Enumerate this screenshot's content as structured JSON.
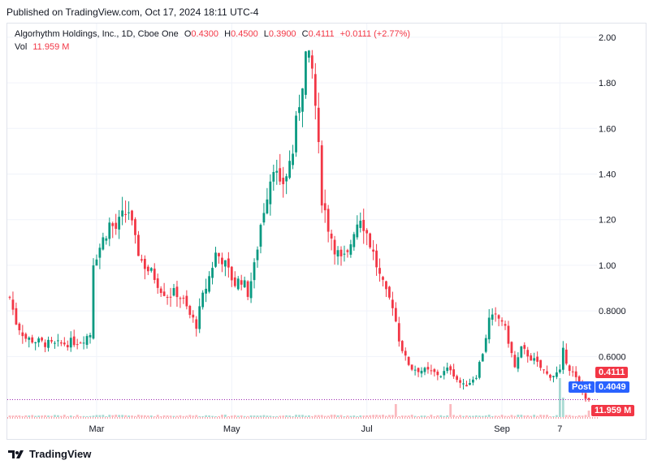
{
  "header": {
    "published": "Published on TradingView.com, Oct 17, 2024 18:11 UTC-4"
  },
  "legend": {
    "symbol": "Algorhythm Holdings, Inc., 1D, Cboe One",
    "open_label": "O",
    "open": "0.4300",
    "high_label": "H",
    "high": "0.4500",
    "low_label": "L",
    "low": "0.3900",
    "close_label": "C",
    "close": "0.4111",
    "change": "+0.0111 (+2.77%)",
    "vol_label": "Vol",
    "vol": "11.959 M"
  },
  "badges": {
    "last_price": "0.4111",
    "post_label": "Post",
    "post_price": "0.4049",
    "volume": "11.959 M"
  },
  "footer": {
    "brand": "TradingView"
  },
  "colors": {
    "up": "#089981",
    "down": "#f23645",
    "post": "#2962ff",
    "grid": "#f0f3fa"
  },
  "chart_data": {
    "type": "candlestick",
    "y_ticks": [
      "2.00",
      "1.80",
      "1.60",
      "1.40",
      "1.20",
      "1.00",
      "0.8000",
      "0.6000"
    ],
    "y_tick_values": [
      2.0,
      1.8,
      1.6,
      1.4,
      1.2,
      1.0,
      0.8,
      0.6
    ],
    "ylim": [
      0.37,
      2.06
    ],
    "x_ticks": [
      {
        "label": "Mar",
        "index": 27
      },
      {
        "label": "May",
        "index": 69
      },
      {
        "label": "Jul",
        "index": 111
      },
      {
        "label": "Sep",
        "index": 153
      },
      {
        "label": "7",
        "index": 171
      }
    ],
    "n_bars": 181,
    "key_points": [
      [
        0,
        0.86
      ],
      [
        2,
        0.75
      ],
      [
        5,
        0.68
      ],
      [
        10,
        0.66
      ],
      [
        14,
        0.65
      ],
      [
        18,
        0.66
      ],
      [
        22,
        0.67
      ],
      [
        25,
        0.7
      ],
      [
        26,
        1.02
      ],
      [
        28,
        1.08
      ],
      [
        31,
        1.18
      ],
      [
        33,
        1.16
      ],
      [
        35,
        1.21
      ],
      [
        37,
        1.24
      ],
      [
        39,
        1.1
      ],
      [
        41,
        1.02
      ],
      [
        43,
        0.98
      ],
      [
        45,
        0.95
      ],
      [
        47,
        0.9
      ],
      [
        49,
        0.87
      ],
      [
        52,
        0.88
      ],
      [
        54,
        0.84
      ],
      [
        56,
        0.78
      ],
      [
        58,
        0.74
      ],
      [
        60,
        0.86
      ],
      [
        62,
        0.95
      ],
      [
        64,
        1.05
      ],
      [
        66,
        1.03
      ],
      [
        68,
        0.97
      ],
      [
        70,
        0.92
      ],
      [
        72,
        0.94
      ],
      [
        74,
        0.88
      ],
      [
        76,
        0.99
      ],
      [
        78,
        1.18
      ],
      [
        80,
        1.32
      ],
      [
        82,
        1.45
      ],
      [
        84,
        1.33
      ],
      [
        86,
        1.4
      ],
      [
        88,
        1.5
      ],
      [
        90,
        1.72
      ],
      [
        92,
        1.92
      ],
      [
        94,
        1.85
      ],
      [
        95,
        1.7
      ],
      [
        97,
        1.3
      ],
      [
        99,
        1.17
      ],
      [
        101,
        1.08
      ],
      [
        103,
        1.02
      ],
      [
        105,
        1.04
      ],
      [
        107,
        1.16
      ],
      [
        109,
        1.22
      ],
      [
        111,
        1.14
      ],
      [
        113,
        1.05
      ],
      [
        115,
        0.95
      ],
      [
        117,
        0.87
      ],
      [
        119,
        0.83
      ],
      [
        121,
        0.68
      ],
      [
        123,
        0.59
      ],
      [
        125,
        0.55
      ],
      [
        128,
        0.54
      ],
      [
        131,
        0.53
      ],
      [
        134,
        0.52
      ],
      [
        137,
        0.55
      ],
      [
        139,
        0.5
      ],
      [
        141,
        0.47
      ],
      [
        143,
        0.49
      ],
      [
        145,
        0.52
      ],
      [
        147,
        0.62
      ],
      [
        149,
        0.76
      ],
      [
        151,
        0.77
      ],
      [
        153,
        0.76
      ],
      [
        155,
        0.67
      ],
      [
        157,
        0.55
      ],
      [
        159,
        0.63
      ],
      [
        161,
        0.61
      ],
      [
        163,
        0.58
      ],
      [
        165,
        0.55
      ],
      [
        167,
        0.52
      ],
      [
        169,
        0.52
      ],
      [
        171,
        0.53
      ],
      [
        172,
        0.62
      ],
      [
        174,
        0.55
      ],
      [
        176,
        0.5
      ],
      [
        178,
        0.44
      ],
      [
        180,
        0.41
      ]
    ],
    "last_close": 0.4111,
    "post_close": 0.4049,
    "volume_last": "11.959 M"
  }
}
